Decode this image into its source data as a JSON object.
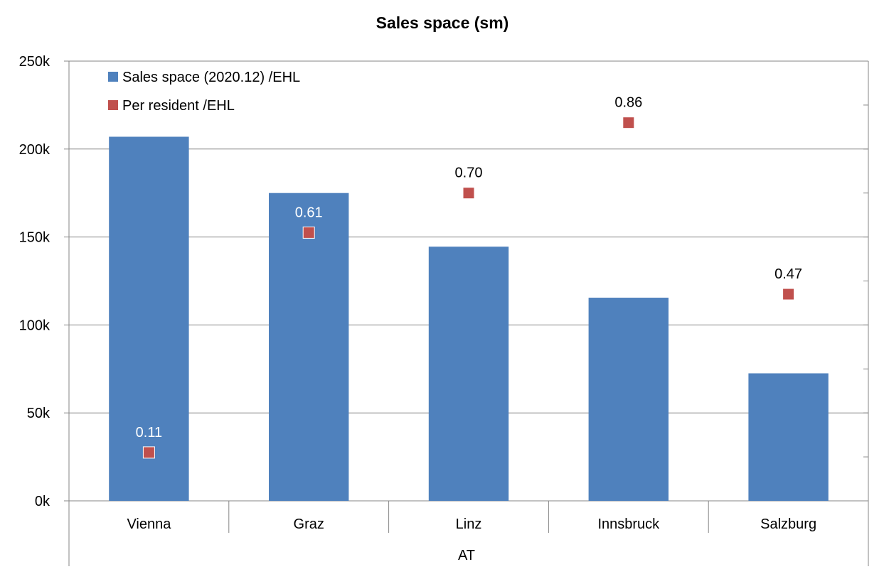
{
  "chart_data": {
    "type": "bar",
    "title": "Sales space (sm)",
    "group_label": "AT",
    "categories": [
      "Vienna",
      "Graz",
      "Linz",
      "Innsbruck",
      "Salzburg"
    ],
    "ylim": [
      0,
      250000
    ],
    "y_ticks": [
      0,
      50000,
      100000,
      150000,
      200000,
      250000
    ],
    "y_tick_labels": [
      "0k",
      "50k",
      "100k",
      "150k",
      "200k",
      "250k"
    ],
    "y2lim": [
      0,
      1.0
    ],
    "grid": true,
    "legend_position": "top-left",
    "series": [
      {
        "name": "Sales space (2020.12) /EHL",
        "type": "bar",
        "axis": "primary",
        "color": "#4F81BD",
        "values": [
          207000,
          175000,
          144500,
          115500,
          72500
        ]
      },
      {
        "name": "Per resident /EHL",
        "type": "scatter",
        "axis": "secondary",
        "color": "#C0504D",
        "values": [
          0.11,
          0.61,
          0.7,
          0.86,
          0.47
        ],
        "labels": [
          "0.11",
          "0.61",
          "0.70",
          "0.86",
          "0.47"
        ]
      }
    ]
  }
}
